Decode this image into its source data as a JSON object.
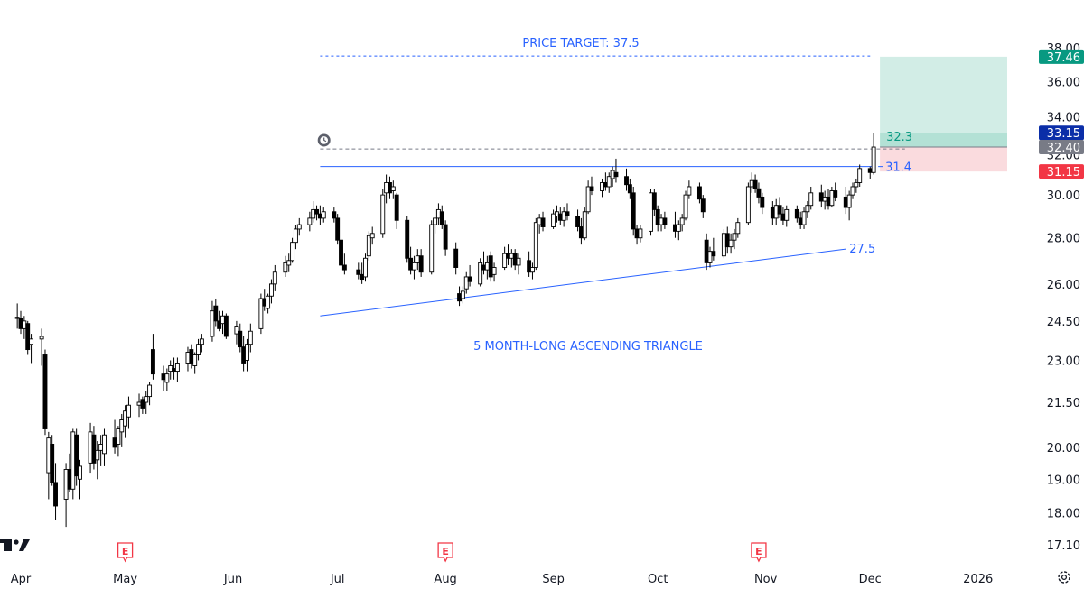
{
  "chart_data": {
    "type": "candlestick",
    "title": "",
    "xlabel": "",
    "ylabel": "",
    "ylim": [
      17.0,
      38.0
    ],
    "y_scale": "log",
    "grid": false,
    "x_ticks": [
      {
        "label": "Apr",
        "date": "2025-04-01"
      },
      {
        "label": "May",
        "date": "2025-05-01"
      },
      {
        "label": "Jun",
        "date": "2025-06-01"
      },
      {
        "label": "Jul",
        "date": "2025-07-01"
      },
      {
        "label": "Aug",
        "date": "2025-08-01"
      },
      {
        "label": "Sep",
        "date": "2025-09-01"
      },
      {
        "label": "Oct",
        "date": "2025-10-01"
      },
      {
        "label": "Nov",
        "date": "2025-11-01"
      },
      {
        "label": "Dec",
        "date": "2025-12-01"
      },
      {
        "label": "2026",
        "date": "2026-01-01"
      }
    ],
    "y_ticks": [
      "38.00",
      "36.00",
      "34.00",
      "32.00",
      "30.00",
      "28.00",
      "26.00",
      "24.50",
      "23.00",
      "21.50",
      "20.00",
      "19.00",
      "18.00",
      "17.10"
    ],
    "price_badges": [
      {
        "label": "37.46",
        "value": 37.46,
        "color": "#089981"
      },
      {
        "label": "33.15",
        "value": 33.15,
        "color": "#0b2ea8"
      },
      {
        "label": "32.40",
        "value": 32.4,
        "color": "#787b86"
      },
      {
        "label": "31.15",
        "value": 31.15,
        "color": "#f23645"
      }
    ],
    "annotations": {
      "price_target_text": "PRICE TARGET: 37.5",
      "price_target_value": 37.5,
      "pattern_text": "5 MONTH-LONG ASCENDING TRIANGLE",
      "support_label": "27.5",
      "resistance_label": "31.4",
      "breakout_label": "32.3"
    },
    "resistance_line": {
      "from": [
        "2025-06-26",
        31.4
      ],
      "to": [
        "2025-12-02",
        31.4
      ]
    },
    "support_line": {
      "from": [
        "2025-06-26",
        24.7
      ],
      "to": [
        "2025-11-24",
        27.5
      ]
    },
    "breakout_dashed_line": {
      "from": [
        "2025-06-26",
        32.3
      ],
      "to": [
        "2025-12-11",
        32.3
      ]
    },
    "target_dashed_line": {
      "from": [
        "2025-06-26",
        37.5
      ],
      "to": [
        "2025-12-01",
        37.5
      ]
    },
    "long_position": {
      "start": "2025-12-02",
      "end": "2026-01-01",
      "entry": 32.4,
      "target": 37.46,
      "stop": 31.15
    },
    "earnings_markers": [
      {
        "date": "2025-05-01",
        "label": "E"
      },
      {
        "date": "2025-08-01",
        "label": "E"
      },
      {
        "date": "2025-10-30",
        "label": "E"
      }
    ],
    "alert_marker": {
      "date": "2025-06-24",
      "value": 32.9
    },
    "colors": {
      "up_body": "#ffffff",
      "down_body": "#000000",
      "candle_outline": "#000000",
      "trend_line": "#2962ff",
      "target_text": "#2962ff",
      "profit_zone": "#d2ede6",
      "stop_zone": "#fadbde"
    },
    "candles": [
      [
        "2025-03-31",
        24.65,
        25.2,
        24.2,
        24.6
      ],
      [
        "2025-04-01",
        24.6,
        24.9,
        24.0,
        24.2
      ],
      [
        "2025-04-02",
        24.2,
        24.7,
        23.8,
        24.5
      ],
      [
        "2025-04-03",
        24.4,
        24.5,
        23.2,
        23.4
      ],
      [
        "2025-04-04",
        23.6,
        24.0,
        22.9,
        23.8
      ],
      [
        "2025-04-07",
        23.8,
        24.2,
        22.8,
        23.9
      ],
      [
        "2025-04-08",
        23.2,
        23.4,
        20.4,
        20.6
      ],
      [
        "2025-04-09",
        19.2,
        20.5,
        18.4,
        20.3
      ],
      [
        "2025-04-10",
        20.1,
        20.4,
        18.8,
        18.9
      ],
      [
        "2025-04-11",
        18.9,
        19.5,
        17.8,
        18.2
      ],
      [
        "2025-04-14",
        18.4,
        19.5,
        17.6,
        19.3
      ],
      [
        "2025-04-15",
        19.3,
        19.8,
        18.6,
        18.7
      ],
      [
        "2025-04-16",
        18.7,
        20.6,
        18.4,
        20.5
      ],
      [
        "2025-04-17",
        20.4,
        20.6,
        18.8,
        19.1
      ],
      [
        "2025-04-18",
        19.0,
        19.6,
        18.4,
        19.4
      ],
      [
        "2025-04-21",
        19.5,
        20.8,
        19.2,
        20.5
      ],
      [
        "2025-04-22",
        20.4,
        20.7,
        19.3,
        19.5
      ],
      [
        "2025-04-23",
        19.6,
        20.2,
        19.0,
        19.9
      ],
      [
        "2025-04-24",
        19.9,
        20.4,
        19.4,
        20.1
      ],
      [
        "2025-04-25",
        19.8,
        20.6,
        19.4,
        20.4
      ],
      [
        "2025-04-28",
        20.3,
        20.9,
        19.8,
        20.0
      ],
      [
        "2025-04-29",
        20.1,
        20.7,
        19.7,
        20.6
      ],
      [
        "2025-04-30",
        20.5,
        21.1,
        20.0,
        20.9
      ],
      [
        "2025-05-01",
        20.7,
        21.4,
        20.3,
        21.2
      ],
      [
        "2025-05-02",
        21.0,
        21.7,
        20.6,
        21.4
      ],
      [
        "2025-05-05",
        21.4,
        21.8,
        21.0,
        21.5
      ],
      [
        "2025-05-06",
        21.6,
        21.7,
        21.1,
        21.3
      ],
      [
        "2025-05-07",
        21.5,
        21.9,
        21.1,
        21.7
      ],
      [
        "2025-05-08",
        21.7,
        22.2,
        21.4,
        22.1
      ],
      [
        "2025-05-09",
        23.4,
        24.0,
        22.3,
        22.5
      ],
      [
        "2025-05-12",
        22.5,
        22.8,
        21.9,
        22.3
      ],
      [
        "2025-05-13",
        22.2,
        22.7,
        21.9,
        22.5
      ],
      [
        "2025-05-14",
        22.6,
        23.0,
        22.3,
        22.8
      ],
      [
        "2025-05-15",
        22.7,
        23.1,
        22.3,
        22.6
      ],
      [
        "2025-05-16",
        22.6,
        23.1,
        22.2,
        22.9
      ],
      [
        "2025-05-19",
        22.9,
        23.5,
        22.6,
        23.3
      ],
      [
        "2025-05-20",
        23.4,
        23.6,
        22.7,
        22.9
      ],
      [
        "2025-05-21",
        22.8,
        23.3,
        22.5,
        23.2
      ],
      [
        "2025-05-22",
        23.2,
        23.8,
        23.0,
        23.6
      ],
      [
        "2025-05-23",
        23.6,
        24.0,
        23.3,
        23.8
      ],
      [
        "2025-05-26",
        23.9,
        25.3,
        23.7,
        24.9
      ],
      [
        "2025-05-27",
        25.1,
        25.4,
        24.3,
        24.5
      ],
      [
        "2025-05-28",
        24.5,
        24.9,
        24.1,
        24.2
      ],
      [
        "2025-05-29",
        24.4,
        24.9,
        24.0,
        24.7
      ],
      [
        "2025-05-30",
        24.7,
        24.8,
        23.8,
        23.9
      ],
      [
        "2025-06-02",
        24.0,
        24.5,
        23.6,
        24.3
      ],
      [
        "2025-06-03",
        24.1,
        24.4,
        23.3,
        23.5
      ],
      [
        "2025-06-04",
        23.5,
        23.9,
        22.6,
        22.9
      ],
      [
        "2025-06-05",
        23.0,
        23.8,
        22.6,
        23.6
      ],
      [
        "2025-06-06",
        23.6,
        24.4,
        23.3,
        24.1
      ],
      [
        "2025-06-09",
        24.2,
        25.6,
        24.0,
        25.4
      ],
      [
        "2025-06-10",
        25.4,
        25.8,
        24.9,
        25.1
      ],
      [
        "2025-06-11",
        25.0,
        25.6,
        24.8,
        25.5
      ],
      [
        "2025-06-12",
        25.5,
        26.2,
        25.2,
        26.0
      ],
      [
        "2025-06-13",
        26.0,
        26.8,
        25.7,
        26.5
      ],
      [
        "2025-06-16",
        26.5,
        27.2,
        26.3,
        26.9
      ],
      [
        "2025-06-17",
        26.8,
        27.3,
        26.5,
        27.0
      ],
      [
        "2025-06-18",
        27.0,
        28.0,
        26.9,
        27.8
      ],
      [
        "2025-06-19",
        27.8,
        28.6,
        27.5,
        28.4
      ],
      [
        "2025-06-20",
        28.4,
        28.9,
        28.1,
        28.6
      ],
      [
        "2025-06-23",
        28.6,
        29.2,
        28.3,
        28.9
      ],
      [
        "2025-06-24",
        28.9,
        29.7,
        28.7,
        29.3
      ],
      [
        "2025-06-25",
        29.3,
        29.5,
        28.8,
        29.1
      ],
      [
        "2025-06-26",
        29.1,
        29.5,
        28.6,
        28.9
      ],
      [
        "2025-06-27",
        28.9,
        29.4,
        28.7,
        29.2
      ],
      [
        "2025-06-30",
        29.2,
        29.4,
        28.7,
        28.9
      ],
      [
        "2025-07-01",
        28.9,
        29.1,
        27.7,
        27.9
      ],
      [
        "2025-07-02",
        27.9,
        28.0,
        26.6,
        26.8
      ],
      [
        "2025-07-03",
        26.8,
        27.3,
        26.4,
        26.6
      ],
      [
        "2025-07-07",
        26.6,
        26.9,
        26.2,
        26.4
      ],
      [
        "2025-07-08",
        26.4,
        26.9,
        26.0,
        26.2
      ],
      [
        "2025-07-09",
        26.3,
        27.3,
        26.1,
        27.1
      ],
      [
        "2025-07-10",
        27.2,
        28.3,
        27.0,
        28.1
      ],
      [
        "2025-07-11",
        28.0,
        28.5,
        27.7,
        28.2
      ],
      [
        "2025-07-14",
        28.2,
        30.3,
        28.0,
        30.0
      ],
      [
        "2025-07-15",
        30.1,
        31.0,
        29.6,
        30.6
      ],
      [
        "2025-07-16",
        30.6,
        30.9,
        29.8,
        30.1
      ],
      [
        "2025-07-17",
        30.2,
        30.7,
        29.8,
        30.4
      ],
      [
        "2025-07-18",
        30.0,
        30.1,
        28.4,
        28.8
      ],
      [
        "2025-07-21",
        28.8,
        29.0,
        26.9,
        27.1
      ],
      [
        "2025-07-22",
        27.1,
        27.6,
        26.4,
        26.6
      ],
      [
        "2025-07-23",
        26.6,
        27.2,
        26.2,
        26.9
      ],
      [
        "2025-07-24",
        26.9,
        27.5,
        26.6,
        27.2
      ],
      [
        "2025-07-25",
        27.2,
        27.5,
        26.3,
        26.5
      ],
      [
        "2025-07-28",
        26.5,
        28.8,
        26.4,
        28.6
      ],
      [
        "2025-07-29",
        28.6,
        29.3,
        28.2,
        28.9
      ],
      [
        "2025-07-30",
        28.9,
        29.6,
        28.6,
        29.3
      ],
      [
        "2025-07-31",
        29.2,
        29.5,
        28.4,
        28.6
      ],
      [
        "2025-08-01",
        28.6,
        28.8,
        27.2,
        27.5
      ],
      [
        "2025-08-04",
        27.5,
        27.8,
        26.4,
        26.7
      ],
      [
        "2025-08-05",
        25.6,
        25.9,
        25.1,
        25.3
      ],
      [
        "2025-08-06",
        25.4,
        25.9,
        25.2,
        25.7
      ],
      [
        "2025-08-07",
        25.8,
        26.5,
        25.6,
        26.3
      ],
      [
        "2025-08-08",
        26.3,
        26.8,
        25.9,
        26.1
      ],
      [
        "2025-08-11",
        26.0,
        27.1,
        25.9,
        26.9
      ],
      [
        "2025-08-12",
        26.8,
        27.4,
        26.4,
        26.6
      ],
      [
        "2025-08-13",
        26.6,
        27.2,
        26.2,
        26.9
      ],
      [
        "2025-08-14",
        27.2,
        27.4,
        26.1,
        26.3
      ],
      [
        "2025-08-15",
        26.4,
        26.9,
        26.1,
        26.7
      ],
      [
        "2025-08-18",
        26.7,
        27.6,
        26.6,
        27.3
      ],
      [
        "2025-08-19",
        27.3,
        27.7,
        26.8,
        27.1
      ],
      [
        "2025-08-20",
        27.1,
        27.5,
        26.7,
        27.3
      ],
      [
        "2025-08-21",
        27.3,
        27.5,
        26.6,
        26.8
      ],
      [
        "2025-08-22",
        26.8,
        27.3,
        26.4,
        27.1
      ],
      [
        "2025-08-25",
        27.0,
        27.4,
        26.3,
        26.5
      ],
      [
        "2025-08-26",
        26.5,
        26.9,
        26.2,
        26.7
      ],
      [
        "2025-08-27",
        26.7,
        28.9,
        26.6,
        28.7
      ],
      [
        "2025-08-28",
        28.6,
        29.1,
        28.2,
        28.9
      ],
      [
        "2025-08-29",
        28.9,
        29.2,
        28.3,
        28.5
      ],
      [
        "2025-09-01",
        28.5,
        29.3,
        28.4,
        29.1
      ],
      [
        "2025-09-02",
        29.0,
        29.5,
        28.7,
        29.2
      ],
      [
        "2025-09-03",
        29.1,
        29.4,
        28.6,
        28.8
      ],
      [
        "2025-09-04",
        28.8,
        29.4,
        28.5,
        29.2
      ],
      [
        "2025-09-05",
        29.2,
        29.6,
        28.8,
        29.0
      ],
      [
        "2025-09-08",
        29.0,
        29.3,
        28.3,
        28.5
      ],
      [
        "2025-09-09",
        28.5,
        28.9,
        27.7,
        28.0
      ],
      [
        "2025-09-10",
        28.0,
        29.4,
        27.9,
        29.2
      ],
      [
        "2025-09-11",
        29.2,
        30.7,
        29.1,
        30.4
      ],
      [
        "2025-09-12",
        30.4,
        30.9,
        30.0,
        30.2
      ],
      [
        "2025-09-15",
        30.2,
        30.8,
        29.9,
        30.6
      ],
      [
        "2025-09-16",
        30.6,
        31.1,
        30.2,
        30.4
      ],
      [
        "2025-09-17",
        30.4,
        31.1,
        30.1,
        30.9
      ],
      [
        "2025-09-18",
        30.8,
        31.4,
        30.4,
        31.2
      ],
      [
        "2025-09-19",
        31.1,
        31.8,
        30.6,
        30.9
      ],
      [
        "2025-09-22",
        30.9,
        31.3,
        30.2,
        30.5
      ],
      [
        "2025-09-23",
        30.5,
        30.8,
        29.8,
        30.1
      ],
      [
        "2025-09-24",
        30.1,
        30.4,
        28.1,
        28.4
      ],
      [
        "2025-09-25",
        28.4,
        28.6,
        27.7,
        28.0
      ],
      [
        "2025-09-26",
        28.0,
        28.6,
        27.8,
        28.4
      ],
      [
        "2025-09-29",
        28.3,
        30.3,
        28.1,
        30.1
      ],
      [
        "2025-09-30",
        30.1,
        30.3,
        29.0,
        29.3
      ],
      [
        "2025-10-01",
        29.3,
        29.5,
        28.3,
        28.6
      ],
      [
        "2025-10-02",
        28.6,
        29.1,
        28.3,
        28.9
      ],
      [
        "2025-10-03",
        28.9,
        29.2,
        28.4,
        28.6
      ],
      [
        "2025-10-06",
        28.6,
        29.2,
        28.0,
        28.3
      ],
      [
        "2025-10-07",
        28.3,
        28.8,
        27.9,
        28.6
      ],
      [
        "2025-10-08",
        28.6,
        29.1,
        28.3,
        28.9
      ],
      [
        "2025-10-09",
        28.9,
        30.2,
        28.8,
        30.0
      ],
      [
        "2025-10-10",
        30.0,
        30.7,
        29.8,
        30.4
      ],
      [
        "2025-10-13",
        30.4,
        30.6,
        29.6,
        29.8
      ],
      [
        "2025-10-14",
        29.8,
        30.0,
        28.9,
        29.2
      ],
      [
        "2025-10-15",
        27.9,
        28.2,
        26.6,
        26.9
      ],
      [
        "2025-10-16",
        26.9,
        27.6,
        26.7,
        27.4
      ],
      [
        "2025-10-17",
        27.4,
        28.0,
        27.0,
        27.2
      ],
      [
        "2025-10-20",
        27.2,
        28.4,
        27.1,
        28.2
      ],
      [
        "2025-10-21",
        28.2,
        28.5,
        27.3,
        27.6
      ],
      [
        "2025-10-22",
        27.6,
        28.2,
        27.3,
        27.9
      ],
      [
        "2025-10-23",
        27.9,
        28.4,
        27.5,
        28.2
      ],
      [
        "2025-10-24",
        28.2,
        28.9,
        28.0,
        28.7
      ],
      [
        "2025-10-27",
        28.7,
        30.6,
        28.6,
        30.4
      ],
      [
        "2025-10-28",
        30.4,
        31.1,
        30.1,
        30.7
      ],
      [
        "2025-10-29",
        30.7,
        31.0,
        30.1,
        30.3
      ],
      [
        "2025-10-30",
        30.3,
        30.6,
        29.6,
        29.9
      ],
      [
        "2025-10-31",
        29.9,
        30.1,
        29.1,
        29.4
      ],
      [
        "2025-11-03",
        29.4,
        29.7,
        28.6,
        28.9
      ],
      [
        "2025-11-04",
        28.9,
        29.8,
        28.6,
        29.5
      ],
      [
        "2025-11-05",
        29.5,
        29.9,
        28.9,
        29.1
      ],
      [
        "2025-11-06",
        29.1,
        29.4,
        28.6,
        28.8
      ],
      [
        "2025-11-07",
        28.8,
        29.5,
        28.5,
        29.3
      ],
      [
        "2025-11-10",
        29.3,
        29.5,
        28.7,
        28.9
      ],
      [
        "2025-11-11",
        28.9,
        29.2,
        28.4,
        28.6
      ],
      [
        "2025-11-12",
        28.6,
        29.4,
        28.4,
        29.2
      ],
      [
        "2025-11-13",
        29.2,
        29.7,
        28.9,
        29.5
      ],
      [
        "2025-11-14",
        29.5,
        30.4,
        29.3,
        30.1
      ],
      [
        "2025-11-17",
        30.1,
        30.5,
        29.4,
        29.7
      ],
      [
        "2025-11-18",
        29.7,
        30.2,
        29.3,
        29.9
      ],
      [
        "2025-11-19",
        29.9,
        30.3,
        29.3,
        29.5
      ],
      [
        "2025-11-20",
        29.5,
        30.4,
        29.4,
        30.2
      ],
      [
        "2025-11-21",
        30.2,
        30.6,
        29.7,
        29.9
      ],
      [
        "2025-11-24",
        29.9,
        30.4,
        29.1,
        29.4
      ],
      [
        "2025-11-25",
        29.4,
        30.2,
        28.8,
        30.0
      ],
      [
        "2025-11-26",
        30.0,
        30.6,
        29.8,
        30.4
      ],
      [
        "2025-11-27",
        30.4,
        30.8,
        30.1,
        30.6
      ],
      [
        "2025-11-28",
        30.6,
        31.5,
        30.4,
        31.3
      ],
      [
        "2025-12-01",
        31.3,
        31.4,
        30.8,
        31.1
      ],
      [
        "2025-12-02",
        31.1,
        33.15,
        31.0,
        32.4
      ]
    ]
  }
}
